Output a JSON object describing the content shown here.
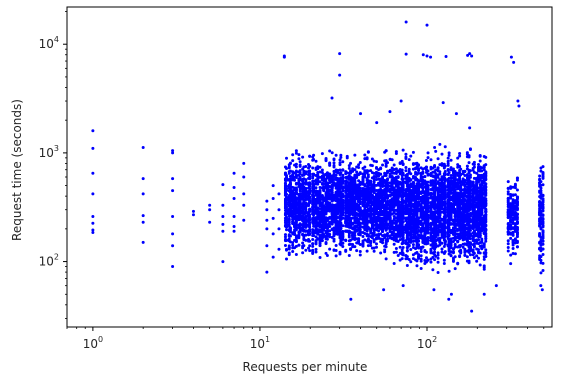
{
  "chart_data": {
    "type": "scatter",
    "title": "",
    "xlabel": "Requests per minute",
    "ylabel": "Request time (seconds)",
    "xscale": "log",
    "yscale": "log",
    "xlim": [
      0.7,
      560
    ],
    "ylim": [
      25,
      22000
    ],
    "grid": false,
    "legend": "none",
    "marker_color": "#0000ff",
    "x_tick_labels": [
      {
        "base": "10",
        "exp": "0",
        "value": 1
      },
      {
        "base": "10",
        "exp": "1",
        "value": 10
      },
      {
        "base": "10",
        "exp": "2",
        "value": 100
      }
    ],
    "y_tick_labels": [
      {
        "base": "10",
        "exp": "2",
        "value": 100
      },
      {
        "base": "10",
        "exp": "3",
        "value": 1000
      },
      {
        "base": "10",
        "exp": "4",
        "value": 10000
      }
    ],
    "series": [
      {
        "points": [
          [
            1,
            1600
          ],
          [
            1,
            1100
          ],
          [
            1,
            650
          ],
          [
            1,
            420
          ],
          [
            1,
            260
          ],
          [
            1,
            225
          ],
          [
            1,
            195
          ],
          [
            1,
            185
          ],
          [
            2,
            1120
          ],
          [
            2,
            580
          ],
          [
            2,
            420
          ],
          [
            2,
            265
          ],
          [
            2,
            230
          ],
          [
            2,
            150
          ],
          [
            3,
            1050
          ],
          [
            3,
            1000
          ],
          [
            3,
            580
          ],
          [
            3,
            450
          ],
          [
            3,
            260
          ],
          [
            3,
            180
          ],
          [
            3,
            140
          ],
          [
            3,
            90
          ],
          [
            4,
            290
          ],
          [
            4,
            270
          ],
          [
            5,
            330
          ],
          [
            5,
            300
          ],
          [
            5,
            230
          ],
          [
            6,
            510
          ],
          [
            6,
            330
          ],
          [
            6,
            260
          ],
          [
            6,
            220
          ],
          [
            6,
            190
          ],
          [
            6,
            100
          ],
          [
            7,
            650
          ],
          [
            7,
            480
          ],
          [
            7,
            380
          ],
          [
            7,
            260
          ],
          [
            7,
            210
          ],
          [
            7,
            190
          ],
          [
            8,
            800
          ],
          [
            8,
            600
          ],
          [
            8,
            420
          ],
          [
            8,
            330
          ],
          [
            8,
            240
          ],
          [
            11,
            360
          ],
          [
            11,
            300
          ],
          [
            11,
            240
          ],
          [
            11,
            200
          ],
          [
            11,
            140
          ],
          [
            11,
            80
          ],
          [
            12,
            500
          ],
          [
            12,
            380
          ],
          [
            12,
            250
          ],
          [
            12,
            180
          ],
          [
            12,
            110
          ],
          [
            13,
            420
          ],
          [
            13,
            300
          ],
          [
            13,
            200
          ],
          [
            13,
            130
          ],
          [
            14,
            7800
          ],
          [
            14,
            7600
          ],
          [
            30,
            8200
          ],
          [
            30,
            5200
          ],
          [
            75,
            16000
          ],
          [
            75,
            8100
          ],
          [
            95,
            8000
          ],
          [
            100,
            15000
          ],
          [
            100,
            7800
          ],
          [
            105,
            7600
          ],
          [
            130,
            7700
          ],
          [
            175,
            7900
          ],
          [
            180,
            8200
          ],
          [
            185,
            7800
          ],
          [
            320,
            7600
          ],
          [
            330,
            6800
          ],
          [
            27,
            3200
          ],
          [
            40,
            2300
          ],
          [
            50,
            1900
          ],
          [
            60,
            2400
          ],
          [
            70,
            3000
          ],
          [
            125,
            2900
          ],
          [
            150,
            2300
          ],
          [
            180,
            1700
          ],
          [
            350,
            3000
          ],
          [
            355,
            2700
          ],
          [
            35,
            45
          ],
          [
            55,
            55
          ],
          [
            72,
            60
          ],
          [
            110,
            55
          ],
          [
            135,
            45
          ],
          [
            140,
            50
          ],
          [
            185,
            35
          ],
          [
            220,
            50
          ],
          [
            260,
            60
          ],
          [
            480,
            60
          ],
          [
            490,
            55
          ]
        ],
        "dense_bands": [
          {
            "x_min": 14,
            "x_max": 70,
            "y_min": 90,
            "y_max": 1200,
            "columns": 60,
            "points_per_column": 55
          },
          {
            "x_min": 70,
            "x_max": 230,
            "y_min": 70,
            "y_max": 1300,
            "columns": 45,
            "points_per_column": 70
          },
          {
            "x_min": 300,
            "x_max": 360,
            "y_min": 90,
            "y_max": 700,
            "columns": 5,
            "points_per_column": 40
          },
          {
            "x_min": 470,
            "x_max": 500,
            "y_min": 60,
            "y_max": 1200,
            "columns": 3,
            "points_per_column": 45
          }
        ]
      }
    ]
  }
}
